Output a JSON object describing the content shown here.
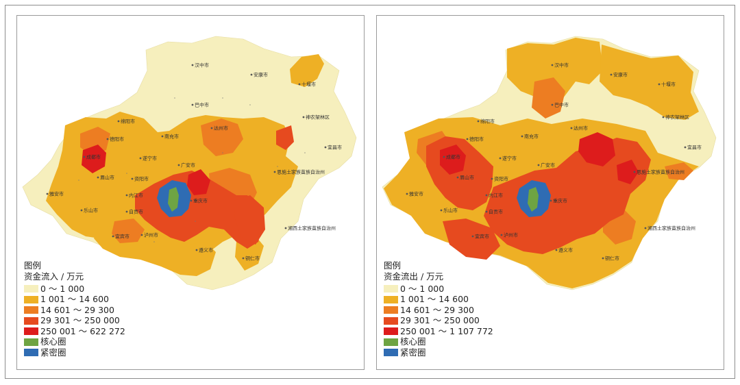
{
  "colors": {
    "class1": "#f6efbd",
    "class2": "#eeb025",
    "class3": "#ed7d22",
    "class4": "#e64a1f",
    "class5": "#dd1c1c",
    "core": "#6ea443",
    "dense": "#2f6cb3"
  },
  "cities": [
    "汉中市",
    "安康市",
    "十堰市",
    "巴中市",
    "神农架林区",
    "达州市",
    "绵阳市",
    "德阳市",
    "南充市",
    "成都市",
    "遂宁市",
    "广安市",
    "宜昌市",
    "恩施土家族苗族自治州",
    "眉山市",
    "资阳市",
    "重庆市",
    "雅安市",
    "内江市",
    "乐山市",
    "自贡市",
    "湘西土家族苗族自治州",
    "宜宾市",
    "泸州市",
    "遵义市",
    "铜仁市"
  ],
  "left": {
    "legend_title": "图例",
    "legend_subtitle": "资金流入 / 万元",
    "legend_items": [
      {
        "label": "0 ～ 1 000",
        "color": "#f6efbd"
      },
      {
        "label": "1 001 ～ 14 600",
        "color": "#eeb025"
      },
      {
        "label": "14 601 ～ 29 300",
        "color": "#ed7d22"
      },
      {
        "label": "29 301 ～ 250 000",
        "color": "#e64a1f"
      },
      {
        "label": "250 001 ～ 622 272",
        "color": "#dd1c1c"
      },
      {
        "label": "核心圈",
        "color": "#6ea443"
      },
      {
        "label": "紧密圈",
        "color": "#2f6cb3"
      }
    ]
  },
  "right": {
    "legend_title": "图例",
    "legend_subtitle": "资金流出 / 万元",
    "legend_items": [
      {
        "label": "0 ～ 1 000",
        "color": "#f6efbd"
      },
      {
        "label": "1 001 ～ 14 600",
        "color": "#eeb025"
      },
      {
        "label": "14 601 ～ 29 300",
        "color": "#ed7d22"
      },
      {
        "label": "29 301 ～ 250 000",
        "color": "#e64a1f"
      },
      {
        "label": "250 001 ～ 1 107 772",
        "color": "#dd1c1c"
      },
      {
        "label": "核心圈",
        "color": "#6ea443"
      },
      {
        "label": "紧密圈",
        "color": "#2f6cb3"
      }
    ]
  }
}
